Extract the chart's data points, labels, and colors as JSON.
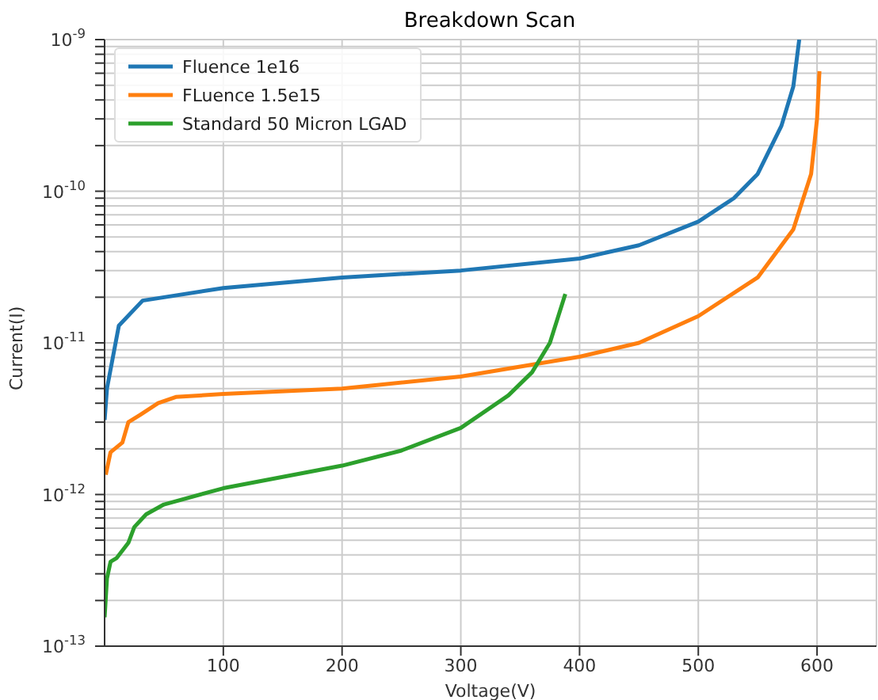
{
  "chart_data": {
    "type": "line",
    "title": "Breakdown Scan",
    "xlabel": "Voltage(V)",
    "ylabel": "Current(I)",
    "log": "y",
    "grid": true,
    "legend": "top left",
    "line_style": "solid",
    "marker": "none",
    "xlim": [
      0,
      650
    ],
    "xticks": [
      100,
      200,
      300,
      400,
      500,
      600
    ],
    "ylim": [
      1e-13,
      1e-09
    ],
    "yticks": [
      {
        "value": 1e-13,
        "label": "10$^{-13}$"
      },
      {
        "value": 2e-13,
        "label": null
      },
      {
        "value": 3e-13,
        "label": null
      },
      {
        "value": 4e-13,
        "label": null
      },
      {
        "value": 5e-13,
        "label": null
      },
      {
        "value": 6e-13,
        "label": null
      },
      {
        "value": 7e-13,
        "label": null
      },
      {
        "value": 8e-13,
        "label": null
      },
      {
        "value": 9e-13,
        "label": null
      },
      {
        "value": 1e-12,
        "label": "10$^{-12}$"
      },
      {
        "value": 2e-12,
        "label": null
      },
      {
        "value": 3e-12,
        "label": null
      },
      {
        "value": 4e-12,
        "label": null
      },
      {
        "value": 5e-12,
        "label": null
      },
      {
        "value": 6e-12,
        "label": null
      },
      {
        "value": 7e-12,
        "label": null
      },
      {
        "value": 8e-12,
        "label": null
      },
      {
        "value": 9e-12,
        "label": null
      },
      {
        "value": 1e-11,
        "label": "10$^{-11}$"
      },
      {
        "value": 2e-11,
        "label": null
      },
      {
        "value": 3e-11,
        "label": null
      },
      {
        "value": 4e-11,
        "label": null
      },
      {
        "value": 5e-11,
        "label": null
      },
      {
        "value": 6e-11,
        "label": null
      },
      {
        "value": 7e-11,
        "label": null
      },
      {
        "value": 8e-11,
        "label": null
      },
      {
        "value": 9e-11,
        "label": null
      },
      {
        "value": 1e-10,
        "label": "10$^{-10}$"
      },
      {
        "value": 2e-10,
        "label": null
      },
      {
        "value": 3e-10,
        "label": null
      },
      {
        "value": 4e-10,
        "label": null
      },
      {
        "value": 5e-10,
        "label": null
      },
      {
        "value": 6e-10,
        "label": null
      },
      {
        "value": 7e-10,
        "label": null
      },
      {
        "value": 8e-10,
        "label": null
      },
      {
        "value": 9e-10,
        "label": null
      },
      {
        "value": 1e-09,
        "label": "10$^{-9}$"
      }
    ],
    "series": [
      {
        "name": "Fluence 1e16",
        "color": "#1f77b4",
        "x": [
          0,
          2,
          12,
          32,
          100,
          200,
          300,
          400,
          450,
          500,
          530,
          550,
          570,
          580,
          585
        ],
        "values": [
          3.1e-12,
          5e-12,
          1.3e-11,
          1.9e-11,
          2.3e-11,
          2.7e-11,
          3e-11,
          3.6e-11,
          4.4e-11,
          6.3e-11,
          9e-11,
          1.3e-10,
          2.7e-10,
          4.9e-10,
          1e-09
        ]
      },
      {
        "name": "FLuence 1.5e15",
        "color": "#ff7f0e",
        "x": [
          1,
          5,
          15,
          20,
          30,
          45,
          60,
          100,
          200,
          300,
          400,
          450,
          500,
          550,
          580,
          595,
          600,
          602
        ],
        "values": [
          1.35e-12,
          1.9e-12,
          2.2e-12,
          3e-12,
          3.35e-12,
          4e-12,
          4.4e-12,
          4.6e-12,
          5e-12,
          6e-12,
          8.1e-12,
          1e-11,
          1.5e-11,
          2.7e-11,
          5.6e-11,
          1.3e-10,
          3e-10,
          6.2e-10
        ]
      },
      {
        "name": "Standard 50 Micron LGAD",
        "color": "#2ca02c",
        "x": [
          0,
          2,
          5,
          10,
          20,
          25,
          35,
          50,
          100,
          200,
          250,
          300,
          340,
          360,
          375,
          388
        ],
        "values": [
          1.55e-13,
          2.8e-13,
          3.6e-13,
          3.8e-13,
          4.8e-13,
          6.1e-13,
          7.4e-13,
          8.6e-13,
          1.1e-12,
          1.55e-12,
          1.95e-12,
          2.75e-12,
          4.5e-12,
          6.4e-12,
          1e-11,
          2.1e-11
        ]
      }
    ]
  }
}
